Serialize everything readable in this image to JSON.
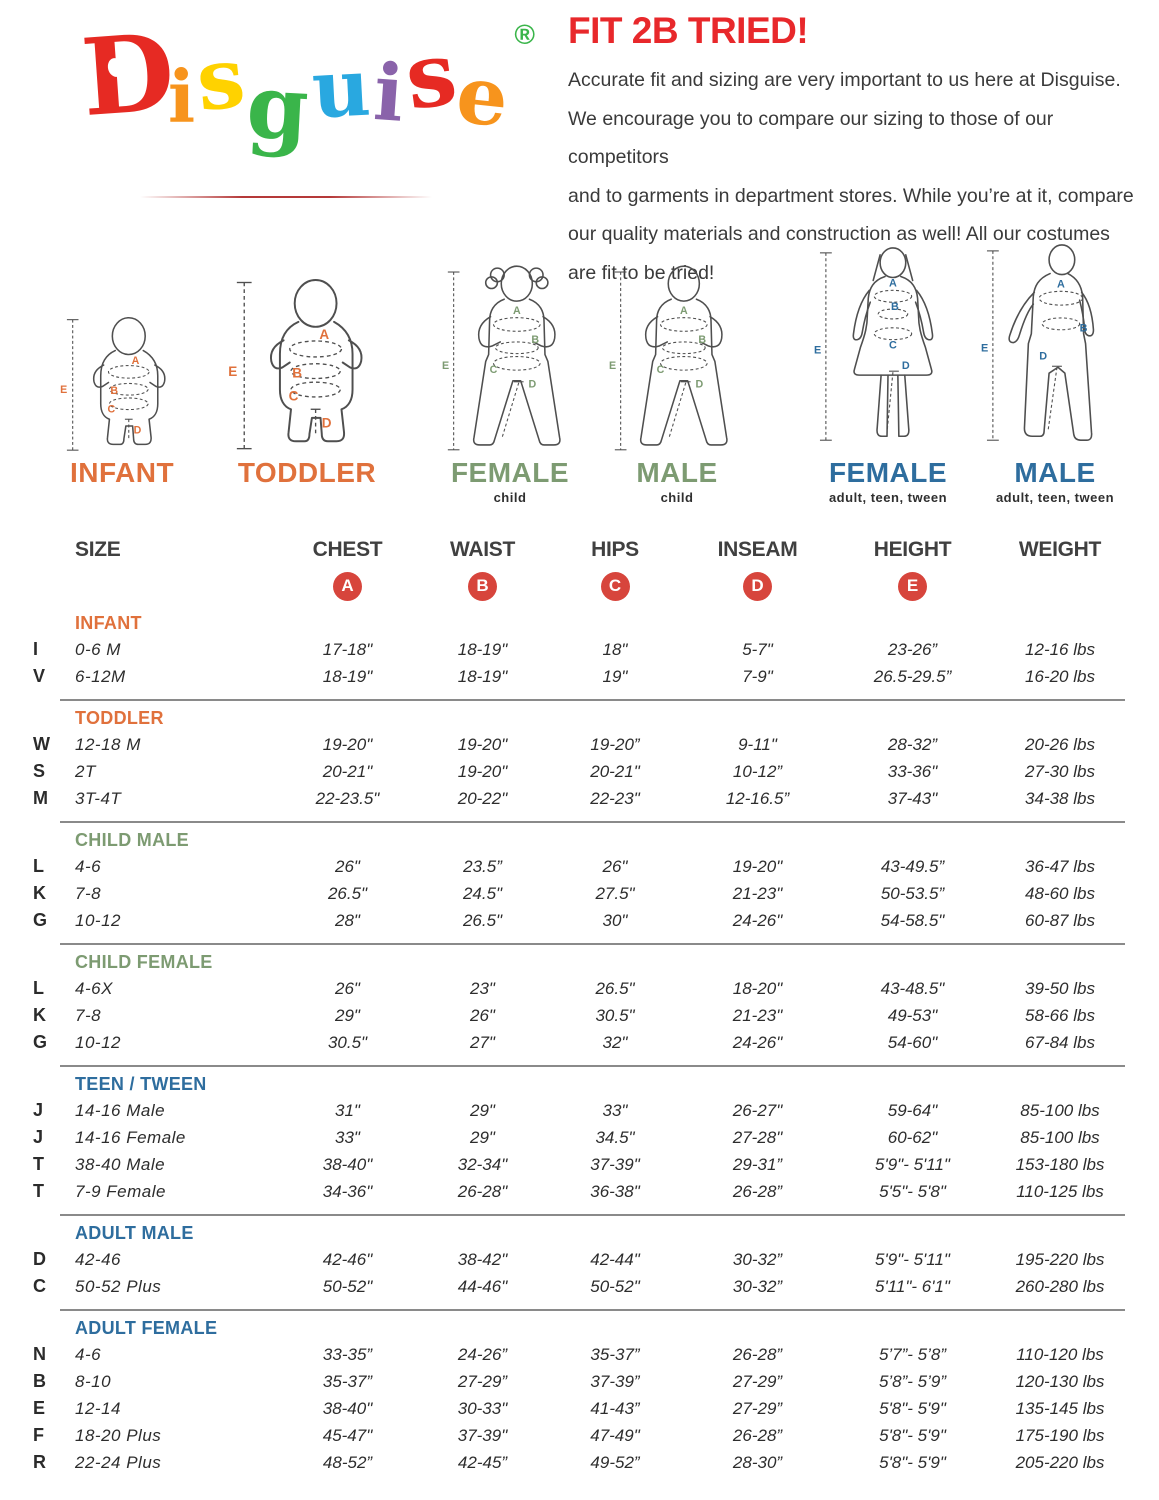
{
  "logo": {
    "letters": [
      {
        "ch": "D",
        "color": "#e62a23"
      },
      {
        "ch": "i",
        "color": "#f7941d"
      },
      {
        "ch": "s",
        "color": "#ffd200"
      },
      {
        "ch": "g",
        "color": "#3ab54a"
      },
      {
        "ch": "u",
        "color": "#29a8e0"
      },
      {
        "ch": "i",
        "color": "#8a63aa"
      },
      {
        "ch": "s",
        "color": "#e62a23"
      },
      {
        "ch": "e",
        "color": "#f7941d"
      }
    ],
    "registered": "®",
    "registered_color": "#3ab54a"
  },
  "intro": {
    "title": "FIT 2B TRIED!",
    "title_color": "#e8282b",
    "lines": [
      "Accurate fit and sizing are very important to us here at Disguise.",
      "We encourage you to compare our sizing to those of our competitors",
      "and to garments in department stores. While you’re at it, compare",
      "our quality materials and construction as well! All our costumes",
      "are fit to be tried!"
    ]
  },
  "figures": {
    "marker_letters": [
      "A",
      "B",
      "C",
      "D",
      "E"
    ],
    "items": [
      {
        "label": "INFANT",
        "sublabel": "",
        "color": "#e0713c"
      },
      {
        "label": "TODDLER",
        "sublabel": "",
        "color": "#e0713c"
      },
      {
        "label": "FEMALE",
        "sublabel": "child",
        "color": "#7d9b72"
      },
      {
        "label": "MALE",
        "sublabel": "child",
        "color": "#7d9b72"
      },
      {
        "label": "FEMALE",
        "sublabel": "adult, teen, tween",
        "color": "#2e6d9e"
      },
      {
        "label": "MALE",
        "sublabel": "adult, teen, tween",
        "color": "#2e6d9e"
      }
    ]
  },
  "table": {
    "columns": [
      "SIZE",
      "CHEST",
      "WAIST",
      "HIPS",
      "INSEAM",
      "HEIGHT",
      "WEIGHT"
    ],
    "badges": [
      "A",
      "B",
      "C",
      "D",
      "E"
    ],
    "badge_color": "#d7453c",
    "sections": [
      {
        "name": "INFANT",
        "color": "#e0713c",
        "rows": [
          {
            "code": "I",
            "size": "0-6 M",
            "chest": "17-18\"",
            "waist": "18-19\"",
            "hips": "18\"",
            "inseam": "5-7\"",
            "height": "23-26”",
            "weight": "12-16 lbs"
          },
          {
            "code": "V",
            "size": "6-12M",
            "chest": "18-19\"",
            "waist": "18-19\"",
            "hips": "19\"",
            "inseam": "7-9\"",
            "height": "26.5-29.5”",
            "weight": "16-20 lbs"
          }
        ]
      },
      {
        "name": "TODDLER",
        "color": "#e0713c",
        "rows": [
          {
            "code": "W",
            "size": "12-18 M",
            "chest": "19-20\"",
            "waist": "19-20\"",
            "hips": "19-20”",
            "inseam": "9-11\"",
            "height": "28-32”",
            "weight": "20-26 lbs"
          },
          {
            "code": "S",
            "size": "2T",
            "chest": "20-21\"",
            "waist": "19-20\"",
            "hips": "20-21\"",
            "inseam": "10-12”",
            "height": "33-36\"",
            "weight": "27-30 lbs"
          },
          {
            "code": "M",
            "size": "3T-4T",
            "chest": "22-23.5\"",
            "waist": "20-22\"",
            "hips": "22-23\"",
            "inseam": "12-16.5”",
            "height": "37-43\"",
            "weight": "34-38 lbs"
          }
        ]
      },
      {
        "name": "CHILD MALE",
        "color": "#7d9b72",
        "rows": [
          {
            "code": "L",
            "size": "4-6",
            "chest": "26\"",
            "waist": "23.5”",
            "hips": "26\"",
            "inseam": "19-20\"",
            "height": "43-49.5”",
            "weight": "36-47 lbs"
          },
          {
            "code": "K",
            "size": "7-8",
            "chest": "26.5\"",
            "waist": "24.5\"",
            "hips": "27.5\"",
            "inseam": "21-23\"",
            "height": "50-53.5”",
            "weight": "48-60 lbs"
          },
          {
            "code": "G",
            "size": "10-12",
            "chest": "28\"",
            "waist": "26.5\"",
            "hips": "30\"",
            "inseam": "24-26\"",
            "height": "54-58.5\"",
            "weight": "60-87 lbs"
          }
        ]
      },
      {
        "name": "CHILD FEMALE",
        "color": "#7d9b72",
        "rows": [
          {
            "code": "L",
            "size": "4-6X",
            "chest": "26\"",
            "waist": "23\"",
            "hips": "26.5\"",
            "inseam": "18-20\"",
            "height": "43-48.5\"",
            "weight": "39-50 lbs"
          },
          {
            "code": "K",
            "size": "7-8",
            "chest": "29\"",
            "waist": "26\"",
            "hips": "30.5\"",
            "inseam": "21-23\"",
            "height": "49-53\"",
            "weight": "58-66 lbs"
          },
          {
            "code": "G",
            "size": "10-12",
            "chest": "30.5\"",
            "waist": "27\"",
            "hips": "32\"",
            "inseam": "24-26\"",
            "height": "54-60\"",
            "weight": "67-84 lbs"
          }
        ]
      },
      {
        "name": "TEEN / TWEEN",
        "color": "#2e6d9e",
        "rows": [
          {
            "code": "J",
            "size": "14-16 Male",
            "chest": "31\"",
            "waist": "29\"",
            "hips": "33\"",
            "inseam": "26-27\"",
            "height": "59-64\"",
            "weight": "85-100 lbs"
          },
          {
            "code": "J",
            "size": "14-16 Female",
            "chest": "33\"",
            "waist": "29\"",
            "hips": "34.5\"",
            "inseam": "27-28\"",
            "height": "60-62\"",
            "weight": "85-100 lbs"
          },
          {
            "code": "T",
            "size": "38-40 Male",
            "chest": "38-40\"",
            "waist": "32-34\"",
            "hips": "37-39\"",
            "inseam": "29-31”",
            "height": "5'9\"- 5'11\"",
            "weight": "153-180 lbs"
          },
          {
            "code": "T",
            "size": "7-9 Female",
            "chest": "34-36\"",
            "waist": "26-28\"",
            "hips": "36-38\"",
            "inseam": "26-28”",
            "height": "5'5\"- 5'8\"",
            "weight": "110-125 lbs"
          }
        ]
      },
      {
        "name": "ADULT MALE",
        "color": "#2e6d9e",
        "rows": [
          {
            "code": "D",
            "size": "42-46",
            "chest": "42-46\"",
            "waist": "38-42\"",
            "hips": "42-44\"",
            "inseam": "30-32”",
            "height": "5'9\"- 5'11\"",
            "weight": "195-220 lbs"
          },
          {
            "code": "C",
            "size": "50-52 Plus",
            "chest": "50-52\"",
            "waist": "44-46\"",
            "hips": "50-52\"",
            "inseam": "30-32”",
            "height": "5'11\"- 6'1\"",
            "weight": "260-280 lbs"
          }
        ]
      },
      {
        "name": "ADULT FEMALE",
        "color": "#2e6d9e",
        "rows": [
          {
            "code": "N",
            "size": "4-6",
            "chest": "33-35”",
            "waist": "24-26”",
            "hips": "35-37”",
            "inseam": "26-28”",
            "height": "5’7”- 5’8”",
            "weight": "110-120 lbs"
          },
          {
            "code": "B",
            "size": "8-10",
            "chest": "35-37”",
            "waist": "27-29”",
            "hips": "37-39”",
            "inseam": "27-29”",
            "height": "5’8”- 5’9”",
            "weight": "120-130 lbs"
          },
          {
            "code": "E",
            "size": "12-14",
            "chest": "38-40\"",
            "waist": "30-33\"",
            "hips": "41-43”",
            "inseam": "27-29”",
            "height": "5'8\"- 5'9\"",
            "weight": "135-145 lbs"
          },
          {
            "code": "F",
            "size": "18-20 Plus",
            "chest": "45-47\"",
            "waist": "37-39\"",
            "hips": "47-49\"",
            "inseam": "26-28”",
            "height": "5'8\"- 5'9\"",
            "weight": "175-190 lbs"
          },
          {
            "code": "R",
            "size": "22-24 Plus",
            "chest": "48-52”",
            "waist": "42-45”",
            "hips": "49-52”",
            "inseam": "28-30”",
            "height": "5'8\"- 5'9\"",
            "weight": "205-220 lbs"
          }
        ]
      }
    ]
  }
}
